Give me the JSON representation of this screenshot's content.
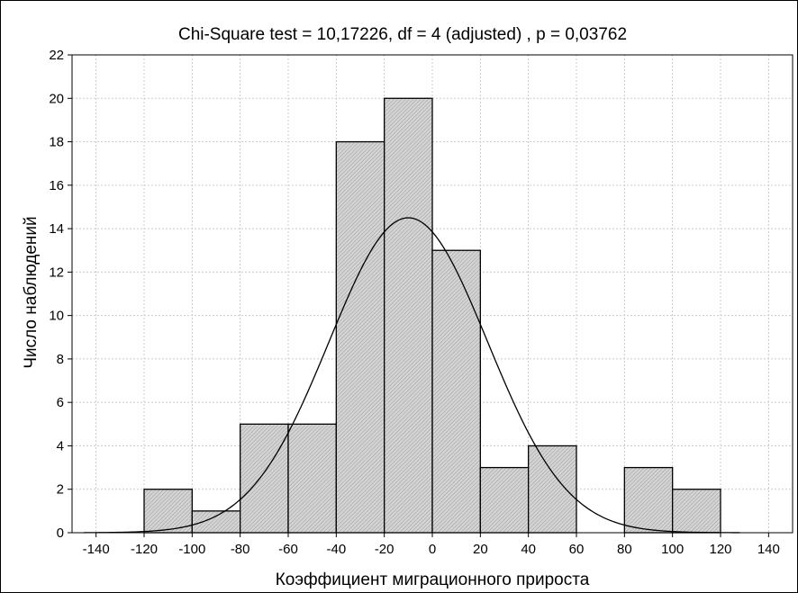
{
  "chart_data": {
    "type": "bar",
    "subtype": "histogram",
    "title": "Chi-Square test = 10,17226, df = 4 (adjusted) , p = 0,03762",
    "xlabel": "Коэффициент миграционного прироста",
    "ylabel": "Число наблюдений",
    "xlim": [
      -150,
      150
    ],
    "ylim": [
      0,
      22
    ],
    "x_ticks": [
      -140,
      -120,
      -100,
      -80,
      -60,
      -40,
      -20,
      0,
      20,
      40,
      60,
      80,
      100,
      120,
      140
    ],
    "y_ticks": [
      0,
      2,
      4,
      6,
      8,
      10,
      12,
      14,
      16,
      18,
      20,
      22
    ],
    "bins": [
      {
        "from": -120,
        "to": -100,
        "count": 2
      },
      {
        "from": -100,
        "to": -80,
        "count": 1
      },
      {
        "from": -80,
        "to": -60,
        "count": 5
      },
      {
        "from": -60,
        "to": -40,
        "count": 5
      },
      {
        "from": -40,
        "to": -20,
        "count": 18
      },
      {
        "from": -20,
        "to": 0,
        "count": 20
      },
      {
        "from": 0,
        "to": 20,
        "count": 13
      },
      {
        "from": 20,
        "to": 40,
        "count": 3
      },
      {
        "from": 40,
        "to": 60,
        "count": 4
      },
      {
        "from": 60,
        "to": 80,
        "count": 0
      },
      {
        "from": 80,
        "to": 100,
        "count": 3
      },
      {
        "from": 100,
        "to": 120,
        "count": 2
      }
    ],
    "normal_curve": {
      "mean": -10,
      "peak": 14.5,
      "sd": 33
    },
    "grid": true,
    "colors": {
      "bar_fill": "#c8c8c8",
      "bar_stroke": "#000000",
      "grid": "#cccccc",
      "curve": "#000000"
    }
  }
}
